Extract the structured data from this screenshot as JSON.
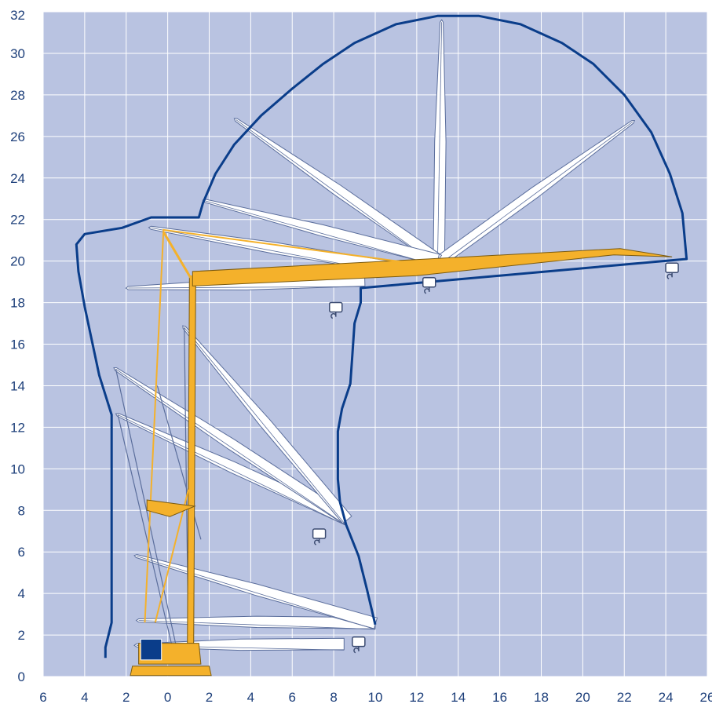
{
  "chart_data": {
    "type": "diagram",
    "x_ticks": [
      "6",
      "4",
      "2",
      "0",
      "2",
      "4",
      "6",
      "8",
      "10",
      "12",
      "14",
      "16",
      "18",
      "20",
      "22",
      "24",
      "26"
    ],
    "y_ticks": [
      "0",
      "2",
      "4",
      "6",
      "8",
      "10",
      "12",
      "14",
      "16",
      "18",
      "20",
      "22",
      "24",
      "26",
      "28",
      "30",
      "32"
    ],
    "xlim": [
      -6,
      26
    ],
    "ylim": [
      0,
      32
    ],
    "grid": true,
    "colors": {
      "background": "#b9c3e1",
      "grid": "#ffffff",
      "envelope": "#0a3d8a",
      "highlight": "#f4b12b",
      "boom_fill": "#ffffff",
      "boom_stroke": "#5b6e9c",
      "cab": "#0a3d8a"
    },
    "envelope": [
      [
        -3.0,
        0.9
      ],
      [
        -3.0,
        1.4
      ],
      [
        -2.7,
        2.6
      ],
      [
        -2.7,
        12.6
      ],
      [
        -3.3,
        14.5
      ],
      [
        -4.0,
        17.8
      ],
      [
        -4.3,
        19.5
      ],
      [
        -4.4,
        20.8
      ],
      [
        -4.0,
        21.3
      ],
      [
        -2.2,
        21.6
      ],
      [
        -0.8,
        22.1
      ],
      [
        1.5,
        22.1
      ],
      [
        1.7,
        22.8
      ],
      [
        2.3,
        24.2
      ],
      [
        3.2,
        25.6
      ],
      [
        4.5,
        27.0
      ],
      [
        6.0,
        28.3
      ],
      [
        7.5,
        29.5
      ],
      [
        9.0,
        30.5
      ],
      [
        11.0,
        31.4
      ],
      [
        13.0,
        31.8
      ],
      [
        15.0,
        31.8
      ],
      [
        17.0,
        31.4
      ],
      [
        19.0,
        30.5
      ],
      [
        20.5,
        29.5
      ],
      [
        22.0,
        28.0
      ],
      [
        23.3,
        26.2
      ],
      [
        24.2,
        24.2
      ],
      [
        24.8,
        22.3
      ],
      [
        25.0,
        20.1
      ],
      [
        9.3,
        18.7
      ],
      [
        9.3,
        18.0
      ],
      [
        9.0,
        17.0
      ],
      [
        8.9,
        15.5
      ],
      [
        8.8,
        14.1
      ],
      [
        8.4,
        12.9
      ],
      [
        8.2,
        11.8
      ],
      [
        8.2,
        10.6
      ],
      [
        8.2,
        9.5
      ],
      [
        8.3,
        8.4
      ],
      [
        8.6,
        7.3
      ],
      [
        9.2,
        5.8
      ],
      [
        9.6,
        4.2
      ],
      [
        10.0,
        2.5
      ]
    ],
    "white_booms": [
      {
        "base": [
          13.0,
          20.0
        ],
        "tip": [
          13.2,
          31.5
        ]
      },
      {
        "base": [
          13.0,
          20.0
        ],
        "tip": [
          22.4,
          26.7
        ]
      },
      {
        "base": [
          13.0,
          20.0
        ],
        "tip": [
          3.3,
          26.8
        ]
      },
      {
        "base": [
          13.0,
          20.0
        ],
        "tip": [
          1.8,
          22.9
        ]
      },
      {
        "base": [
          11.0,
          19.6
        ],
        "tip": [
          -0.8,
          21.6
        ]
      },
      {
        "base": [
          9.5,
          19.0
        ],
        "tip": [
          -1.9,
          18.7
        ]
      },
      {
        "base": [
          8.6,
          7.5
        ],
        "tip": [
          -2.4,
          12.6
        ]
      },
      {
        "base": [
          8.6,
          7.5
        ],
        "tip": [
          -2.5,
          14.8
        ]
      },
      {
        "base": [
          8.6,
          7.5
        ],
        "tip": [
          0.8,
          16.8
        ]
      },
      {
        "base": [
          10.0,
          2.5
        ],
        "tip": [
          -1.4,
          2.7
        ]
      },
      {
        "base": [
          10.0,
          2.5
        ],
        "tip": [
          -1.5,
          5.8
        ]
      },
      {
        "base": [
          8.5,
          1.5
        ],
        "tip": [
          -1.5,
          1.5
        ]
      }
    ],
    "hooks": [
      [
        24.3,
        19.6
      ],
      [
        12.6,
        18.9
      ],
      [
        8.1,
        17.7
      ],
      [
        7.3,
        6.8
      ],
      [
        9.2,
        1.6
      ]
    ]
  }
}
